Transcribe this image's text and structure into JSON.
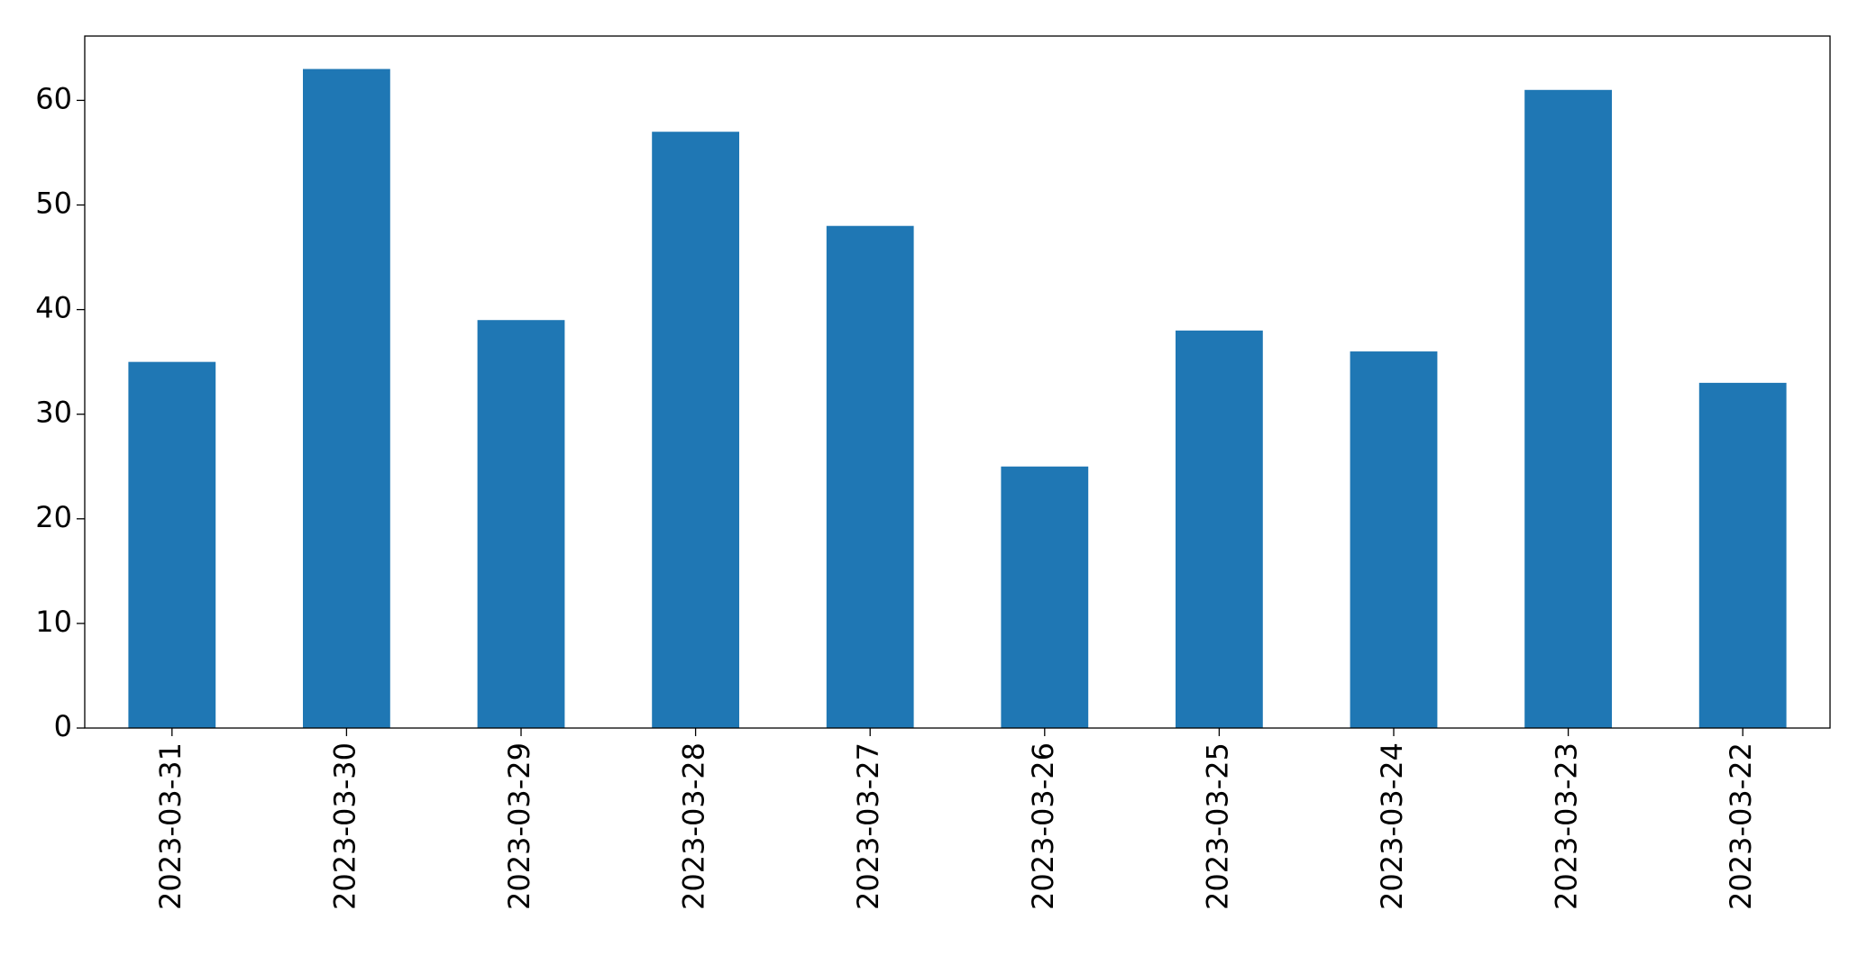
{
  "chart_data": {
    "type": "bar",
    "categories": [
      "2023-03-31",
      "2023-03-30",
      "2023-03-29",
      "2023-03-28",
      "2023-03-27",
      "2023-03-26",
      "2023-03-25",
      "2023-03-24",
      "2023-03-23",
      "2023-03-22"
    ],
    "values": [
      35,
      63,
      39,
      57,
      48,
      25,
      38,
      36,
      61,
      33
    ],
    "color": "#1f77b4",
    "ylim": [
      0,
      66.15
    ],
    "yticks": [
      0,
      10,
      20,
      30,
      40,
      50,
      60
    ],
    "grid": false
  }
}
